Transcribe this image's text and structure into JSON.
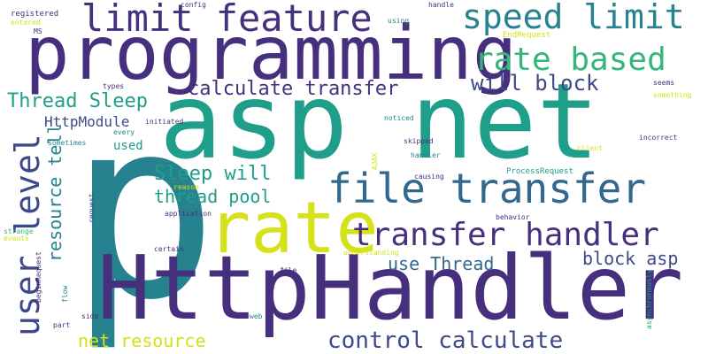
{
  "palette": {
    "dark_purple": "#46307e",
    "indigo": "#3e4989",
    "blue": "#31688e",
    "teal_blue": "#26828e",
    "teal": "#1f9e89",
    "green": "#35b779",
    "light_green": "#6ece58",
    "lime": "#b5de2b",
    "yellow": "#d5e21a"
  },
  "words": [
    {
      "text": "asp net"
    },
    {
      "text": "p"
    },
    {
      "text": "HttpHandler"
    },
    {
      "text": "programming"
    },
    {
      "text": "rate"
    },
    {
      "text": "limit feature"
    },
    {
      "text": "file transfer"
    },
    {
      "text": "speed limit"
    },
    {
      "text": "transfer handler"
    },
    {
      "text": "rate based"
    },
    {
      "text": "user level"
    },
    {
      "text": "control calculate"
    },
    {
      "text": "calculate transfer"
    },
    {
      "text": "will block"
    },
    {
      "text": "Thread Sleep"
    },
    {
      "text": "Sleep will"
    },
    {
      "text": "resource tell"
    },
    {
      "text": "thread pool"
    },
    {
      "text": "block asp"
    },
    {
      "text": "use Thread"
    },
    {
      "text": "net resource"
    },
    {
      "text": "HttpModule"
    },
    {
      "text": "used"
    },
    {
      "text": "registered"
    },
    {
      "text": "entered"
    },
    {
      "text": "MS"
    },
    {
      "text": "config"
    },
    {
      "text": "using"
    },
    {
      "text": "handle"
    },
    {
      "text": "EndRequest"
    },
    {
      "text": "types"
    },
    {
      "text": "seems"
    },
    {
      "text": "something"
    },
    {
      "text": "initiated"
    },
    {
      "text": "every"
    },
    {
      "text": "noticed"
    },
    {
      "text": "incorrect"
    },
    {
      "text": "sometimes"
    },
    {
      "text": "skipped"
    },
    {
      "text": "client"
    },
    {
      "text": "handler"
    },
    {
      "text": "AJAX"
    },
    {
      "text": "ProcessRequest"
    },
    {
      "text": "causing"
    },
    {
      "text": "reason"
    },
    {
      "text": "request"
    },
    {
      "text": "application"
    },
    {
      "text": "behavior"
    },
    {
      "text": "strange"
    },
    {
      "text": "events"
    },
    {
      "text": "certain"
    },
    {
      "text": "understanding"
    },
    {
      "text": "BeginRequest"
    },
    {
      "text": "file"
    },
    {
      "text": "flow"
    },
    {
      "text": "side"
    },
    {
      "text": "web"
    },
    {
      "text": "part"
    },
    {
      "text": "asynchronously"
    }
  ]
}
